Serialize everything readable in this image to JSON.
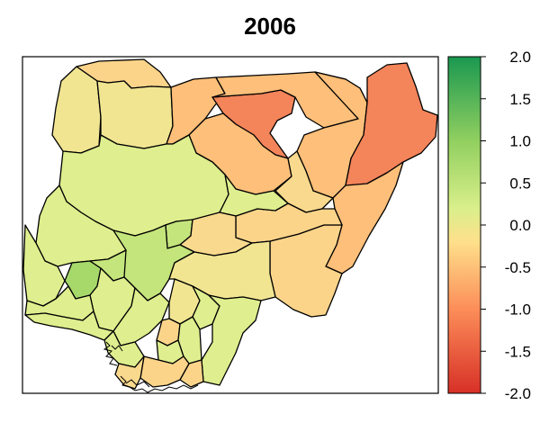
{
  "title": "2006",
  "legend": {
    "ticks": [
      "2.0",
      "1.5",
      "1.0",
      "0.5",
      "0.0",
      "-0.5",
      "-1.0",
      "-1.5",
      "-2.0"
    ],
    "colors": {
      "top": "#1a9850",
      "upper": "#91cf60",
      "mid": "#d9ef8b",
      "center": "#fee08b",
      "lower": "#fc8d59",
      "bottom": "#d73027"
    }
  },
  "region_colors": {
    "strong_negative": "#f4845a",
    "negative": "#fdbf79",
    "slight_negative": "#f9d98d",
    "neutral": "#f1e592",
    "slight_positive": "#dfee8e",
    "positive": "#c4e57c",
    "strong_positive": "#a6d96a"
  }
}
